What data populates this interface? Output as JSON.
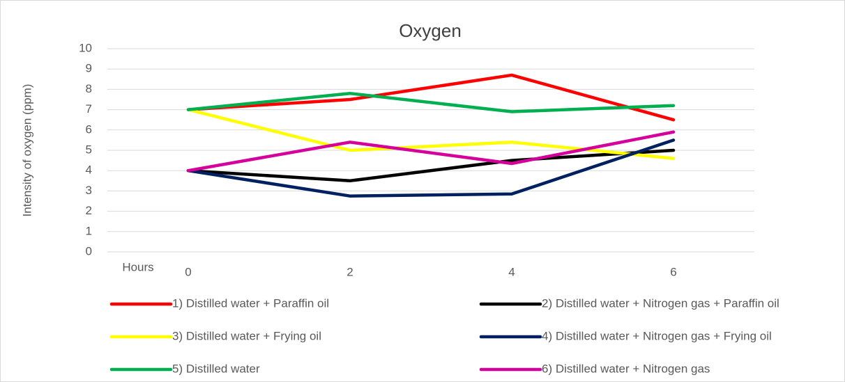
{
  "chart_data": {
    "type": "line",
    "title": "Oxygen",
    "x_label": "Hours",
    "y_label": "Intensity of oxygen (ppm)",
    "x": [
      0,
      2,
      4,
      6
    ],
    "xlim": [
      -1,
      7
    ],
    "xticks": [
      0,
      2,
      4,
      6
    ],
    "ylim": [
      0,
      10
    ],
    "yticks": [
      0,
      1,
      2,
      3,
      4,
      5,
      6,
      7,
      8,
      9,
      10
    ],
    "grid": true,
    "legend": "bottom",
    "series": [
      {
        "name": "1) Distilled water + Paraffin oil",
        "color": "#ff0000",
        "values": [
          7,
          7.5,
          8.7,
          6.5
        ]
      },
      {
        "name": "2) Distilled water + Nitrogen gas + Paraffin oil",
        "color": "#000000",
        "values": [
          4,
          3.5,
          4.5,
          5
        ]
      },
      {
        "name": "3) Distilled water + Frying oil",
        "color": "#ffff00",
        "values": [
          7,
          5,
          5.4,
          4.6
        ]
      },
      {
        "name": "4) Distilled water + Nitrogen gas + Frying oil",
        "color": "#002060",
        "values": [
          4,
          2.75,
          2.85,
          5.5
        ]
      },
      {
        "name": "5) Distilled water",
        "color": "#00b050",
        "values": [
          7,
          7.8,
          6.9,
          7.2
        ]
      },
      {
        "name": "6) Distilled water + Nitrogen gas",
        "color": "#d6009a",
        "values": [
          4,
          5.4,
          4.35,
          5.9
        ]
      }
    ]
  }
}
